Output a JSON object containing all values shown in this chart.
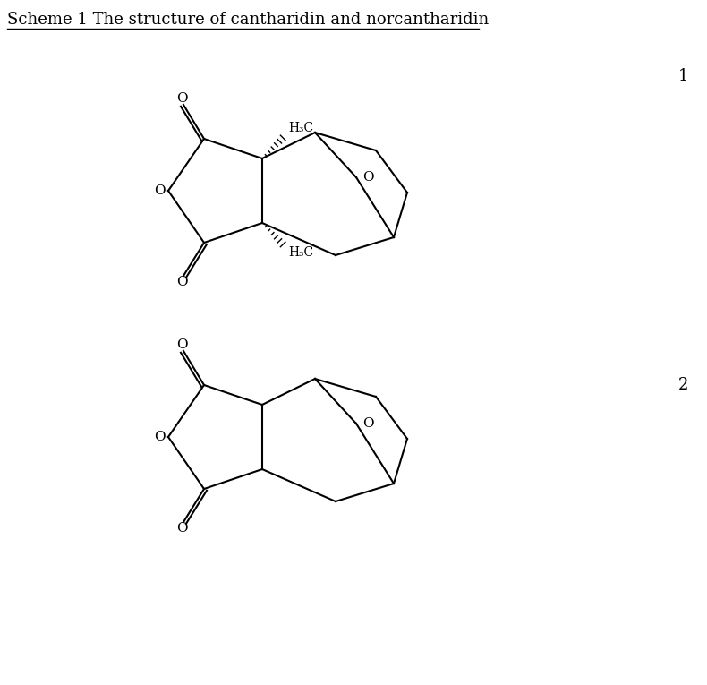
{
  "title": "Scheme 1 The structure of cantharidin and norcantharidin",
  "background_color": "#ffffff",
  "title_fontsize": 13,
  "label1": "1",
  "label2": "2",
  "figsize": [
    7.9,
    7.65
  ],
  "dpi": 100,
  "lw": 1.5
}
